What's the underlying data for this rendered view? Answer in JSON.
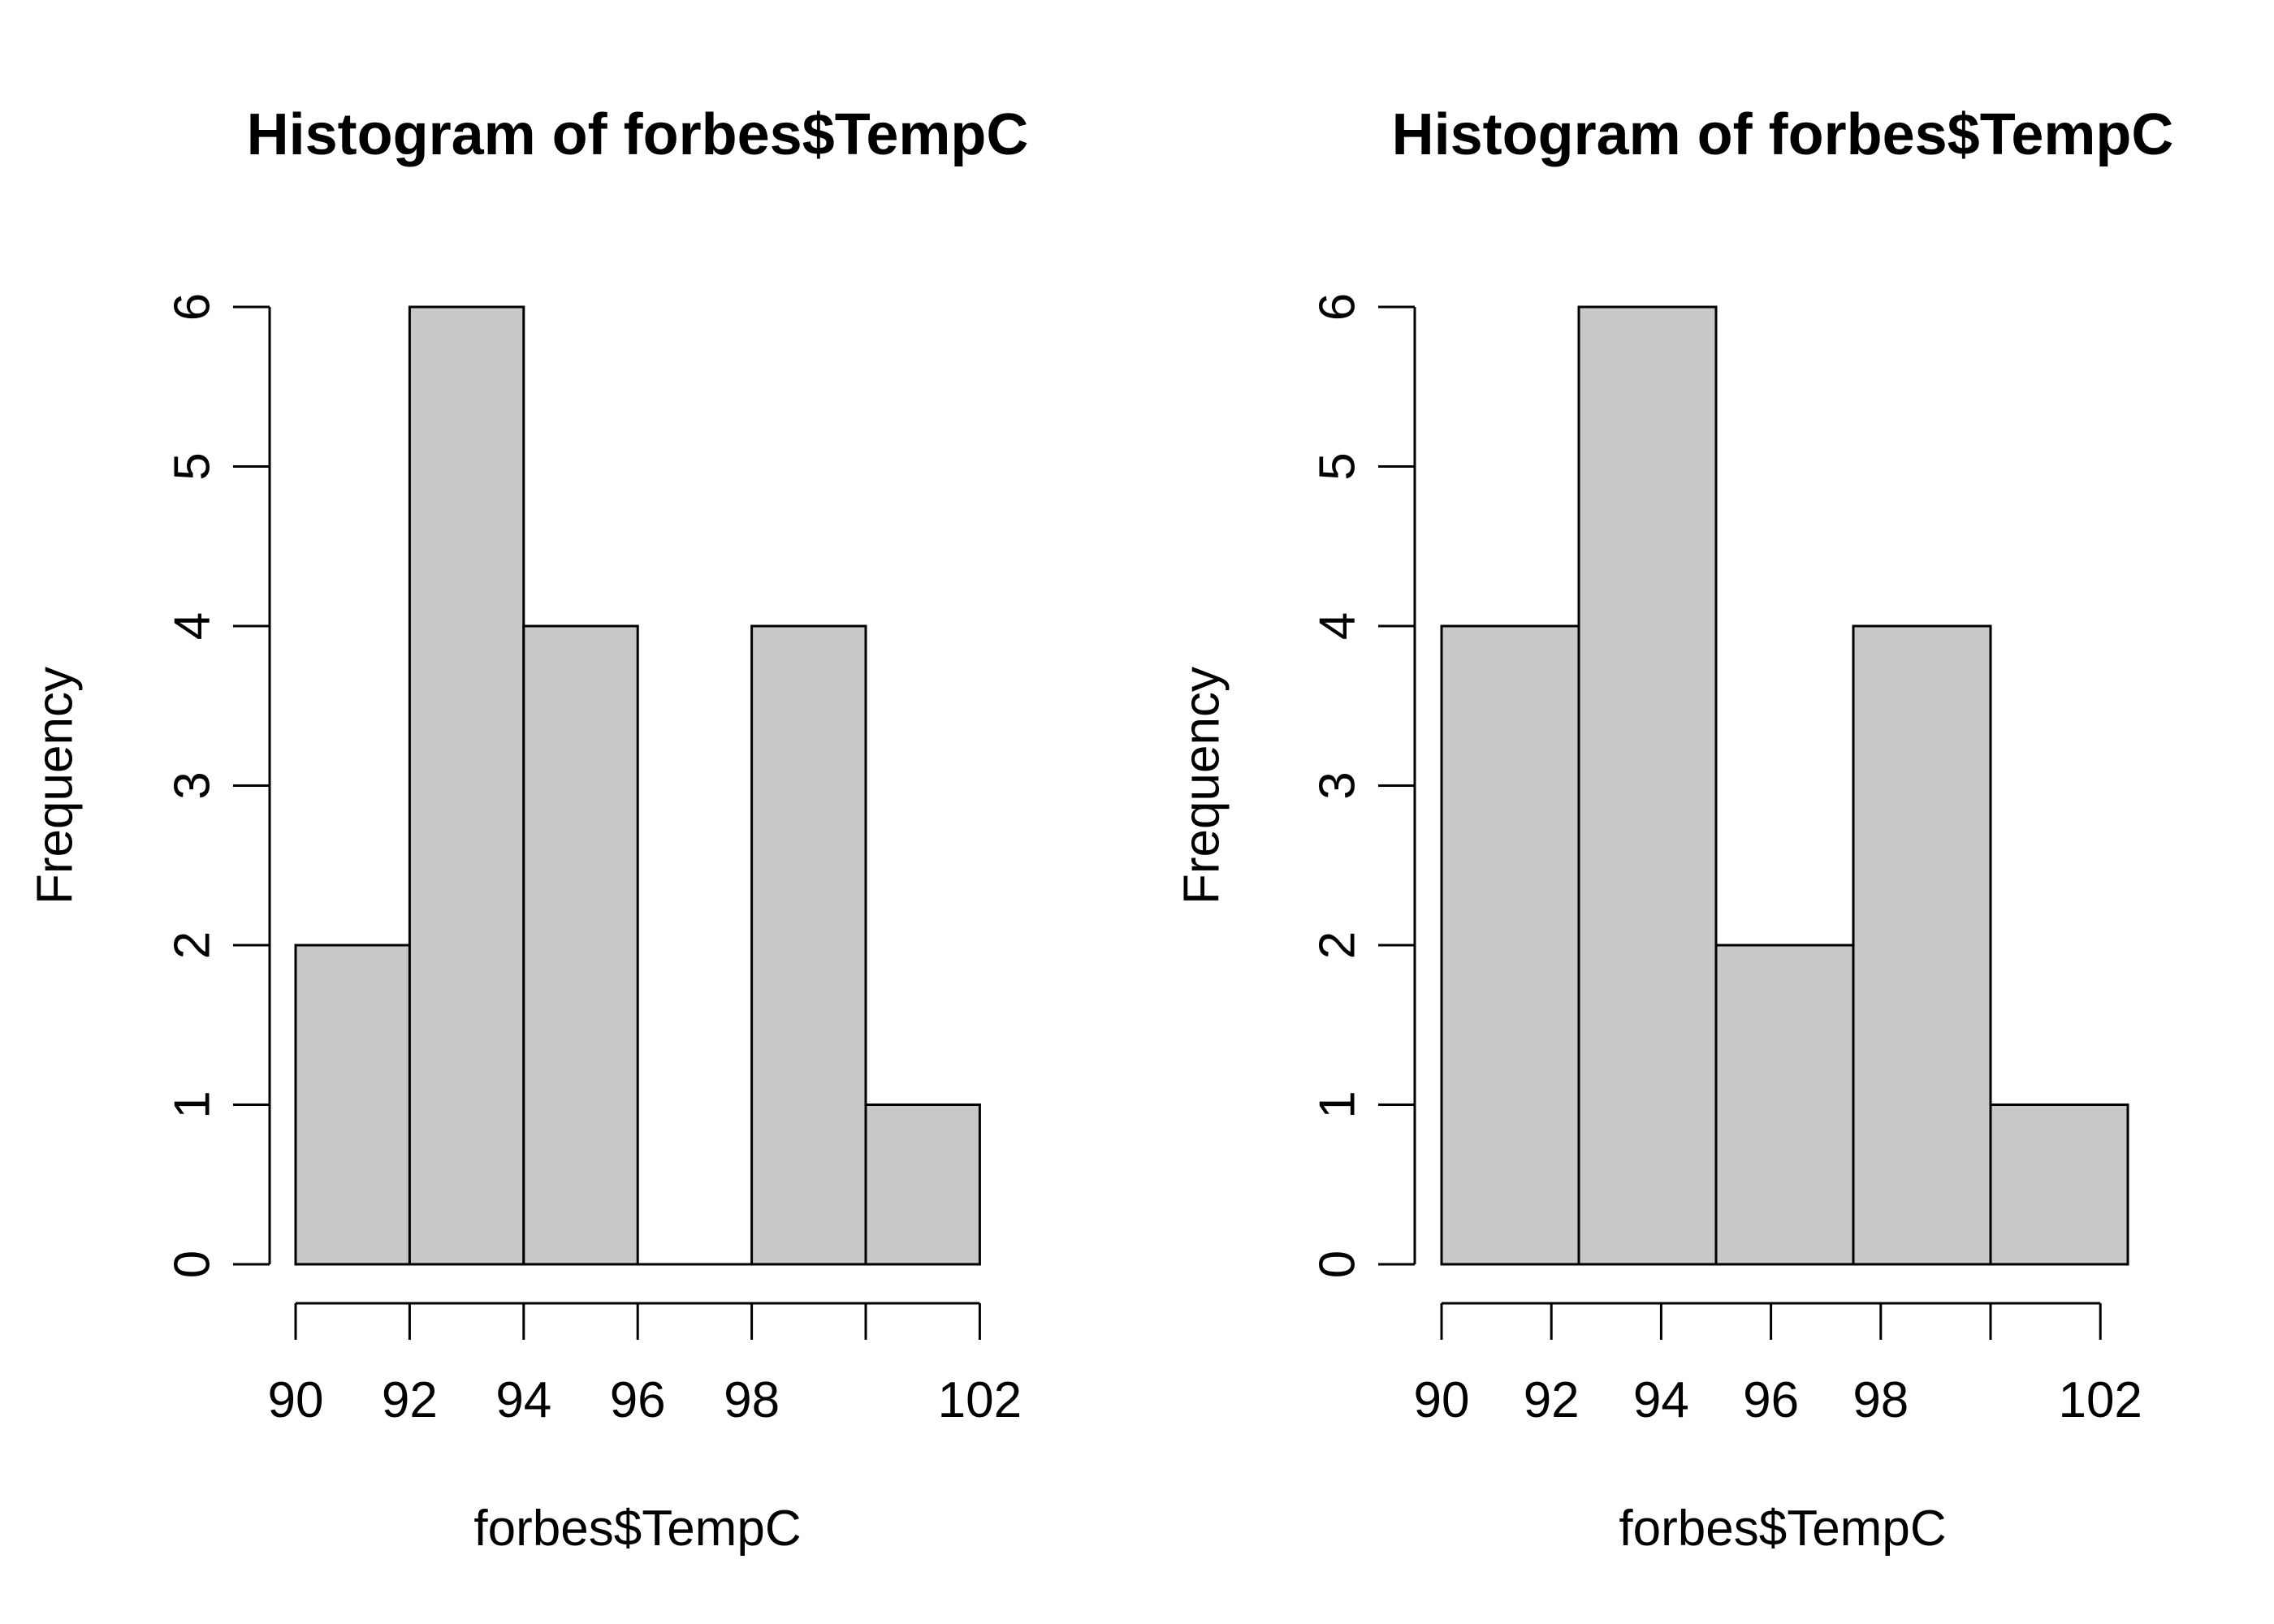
{
  "chart_data": [
    {
      "type": "bar",
      "title": "Histogram of forbes$TempC",
      "xlabel": "forbes$TempC",
      "ylabel": "Frequency",
      "bins": [
        [
          90,
          92
        ],
        [
          92,
          94
        ],
        [
          94,
          96
        ],
        [
          96,
          98
        ],
        [
          98,
          100
        ],
        [
          100,
          102
        ]
      ],
      "values": [
        2,
        6,
        4,
        0,
        4,
        1
      ],
      "xticks": [
        90,
        92,
        94,
        96,
        98,
        100,
        102
      ],
      "xtick_labels": [
        "90",
        "92",
        "94",
        "96",
        "98",
        "",
        "102"
      ],
      "yticks": [
        0,
        1,
        2,
        3,
        4,
        5,
        6
      ],
      "ytick_labels": [
        "0",
        "1",
        "2",
        "3",
        "4",
        "5",
        "6"
      ],
      "xlim": [
        90,
        102
      ],
      "ylim": [
        0,
        6
      ],
      "bar_color": "#c8c8c8",
      "grid": false
    },
    {
      "type": "bar",
      "title": "Histogram of forbes$TempC",
      "xlabel": "forbes$TempC",
      "ylabel": "Frequency",
      "bins": [
        [
          90,
          92.5
        ],
        [
          92.5,
          95
        ],
        [
          95,
          97.5
        ],
        [
          97.5,
          100
        ],
        [
          100,
          102.5
        ]
      ],
      "values": [
        4,
        6,
        2,
        4,
        1
      ],
      "xticks": [
        90,
        92,
        94,
        96,
        98,
        100,
        102
      ],
      "xtick_labels": [
        "90",
        "92",
        "94",
        "96",
        "98",
        "",
        "102"
      ],
      "yticks": [
        0,
        1,
        2,
        3,
        4,
        5,
        6
      ],
      "ytick_labels": [
        "0",
        "1",
        "2",
        "3",
        "4",
        "5",
        "6"
      ],
      "xlim": [
        90,
        102.5
      ],
      "ylim": [
        0,
        6
      ],
      "bar_color": "#c8c8c8",
      "grid": false
    }
  ]
}
